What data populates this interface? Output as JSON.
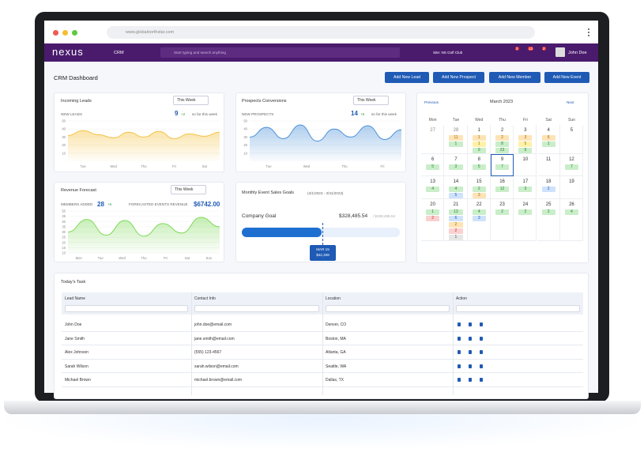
{
  "browser": {
    "url": "www.globalnorthstar.com"
  },
  "nav": {
    "logo": "nexus",
    "module": "CRM",
    "search_placeholder": "Start typing and search anything",
    "site": "Site: NS Golf Club",
    "badges": [
      "2",
      "12",
      "2"
    ],
    "user": "John Doe"
  },
  "header": {
    "title": "CRM Dashboard",
    "buttons": [
      "Add New Lead",
      "Add New Prospect",
      "Add New Member",
      "Add New Event"
    ]
  },
  "incoming_leads": {
    "title": "Incoming Leads",
    "period": "This Week",
    "metric_label": "NEW LEADS",
    "count": "9",
    "delta": "+2",
    "note": "so far this week",
    "x_labels": [
      "Tue",
      "Wed",
      "Thu",
      "Fri",
      "Sat"
    ],
    "values": [
      32,
      38,
      33,
      29,
      36,
      30,
      37,
      28,
      34,
      31,
      36
    ],
    "ylim": [
      0,
      50
    ],
    "yticks": [
      10,
      20,
      30,
      40,
      50
    ],
    "color": "#f6c343"
  },
  "prospect_conversions": {
    "title": "Prospects Conversions",
    "period": "This Week",
    "metric_label": "NEW PROSPECTS",
    "count": "14",
    "delta": "+6",
    "note": "so far this week",
    "x_labels": [
      "Tue",
      "Wed",
      "Thu",
      "Fri"
    ],
    "values": [
      30,
      42,
      28,
      45,
      25,
      40,
      30,
      44,
      27,
      39
    ],
    "ylim": [
      0,
      50
    ],
    "yticks": [
      10,
      20,
      30,
      40,
      50
    ],
    "color": "#4a90d9"
  },
  "revenue_forecast": {
    "title": "Revenue Forecast",
    "period": "This Week",
    "members_label": "MEMBERS ADDED",
    "members": "28",
    "delta": "+6",
    "revenue_label": "FORECASTED EVENTS REVENUE",
    "revenue": "$6742.00",
    "x_labels": [
      "Mon",
      "Tue",
      "Wed",
      "Thu",
      "Fri",
      "Sat",
      "Sun"
    ],
    "values": [
      30,
      42,
      27,
      41,
      26,
      38,
      29,
      44,
      35
    ],
    "ylim": [
      10,
      50
    ],
    "yticks": [
      10,
      15,
      20,
      25,
      30,
      35,
      40,
      45,
      50
    ],
    "color": "#7ed957"
  },
  "sales_goals": {
    "title": "Monthly Event Sales Goals",
    "range": "(3/1/2023 - 3/31/2023)",
    "goal_label": "Company Goal",
    "achieved": "$328,485.54",
    "target": "/ $328,485.54",
    "marker_date": "MAR 15",
    "marker_value": "$42,338"
  },
  "calendar": {
    "previous": "Previous",
    "month": "March 2023",
    "next": "Next",
    "weekdays": [
      "Mon",
      "Tue",
      "Wed",
      "Thu",
      "Fri",
      "Sat",
      "Sun"
    ],
    "weeks": [
      [
        {
          "day": "27",
          "tags": []
        },
        {
          "day": "28",
          "tags": [
            [
              "11",
              "o"
            ],
            [
              "1",
              "g"
            ]
          ]
        },
        {
          "day": "1",
          "tags": [
            [
              "1",
              "o"
            ],
            [
              "1",
              "y"
            ],
            [
              "9",
              "g"
            ]
          ]
        },
        {
          "day": "2",
          "tags": [
            [
              "2",
              "o"
            ],
            [
              "8",
              "g"
            ],
            [
              "23",
              "g"
            ]
          ]
        },
        {
          "day": "3",
          "tags": [
            [
              "3",
              "o"
            ],
            [
              "5",
              "y"
            ],
            [
              "9",
              "g"
            ]
          ]
        },
        {
          "day": "4",
          "tags": [
            [
              "6",
              "o"
            ],
            [
              "1",
              "g"
            ]
          ]
        },
        {
          "day": "5",
          "tags": []
        }
      ],
      [
        {
          "day": "6",
          "tags": [
            [
              "5",
              "g"
            ]
          ]
        },
        {
          "day": "7",
          "tags": [
            [
              "3",
              "g"
            ]
          ]
        },
        {
          "day": "8",
          "tags": [
            [
              "5",
              "g"
            ]
          ]
        },
        {
          "day": "9",
          "tags": [
            [
              "7",
              "g"
            ]
          ]
        },
        {
          "day": "10",
          "tags": []
        },
        {
          "day": "11",
          "tags": []
        },
        {
          "day": "12",
          "tags": [
            [
              "7",
              "g"
            ]
          ]
        }
      ],
      [
        {
          "day": "13",
          "tags": [
            [
              "4",
              "g"
            ]
          ]
        },
        {
          "day": "14",
          "tags": [
            [
              "4",
              "g"
            ],
            [
              "5",
              "b"
            ]
          ]
        },
        {
          "day": "15",
          "tags": [
            [
              "2",
              "g"
            ],
            [
              "3",
              "o"
            ]
          ]
        },
        {
          "day": "16",
          "tags": [
            [
              "12",
              "g"
            ]
          ]
        },
        {
          "day": "17",
          "tags": [
            [
              "3",
              "g"
            ]
          ]
        },
        {
          "day": "18",
          "tags": [
            [
              "2",
              "b"
            ]
          ]
        },
        {
          "day": "19",
          "tags": []
        }
      ],
      [
        {
          "day": "20",
          "tags": [
            [
              "1",
              "g"
            ],
            [
              "2",
              "r"
            ]
          ]
        },
        {
          "day": "21",
          "tags": [
            [
              "13",
              "g"
            ],
            [
              "6",
              "b"
            ],
            [
              "2",
              "o"
            ],
            [
              "2",
              "r"
            ],
            [
              "1",
              "x"
            ]
          ]
        },
        {
          "day": "22",
          "tags": [
            [
              "4",
              "g"
            ],
            [
              "3",
              "b"
            ]
          ]
        },
        {
          "day": "23",
          "tags": [
            [
              "2",
              "g"
            ]
          ]
        },
        {
          "day": "24",
          "tags": [
            [
              "2",
              "g"
            ]
          ]
        },
        {
          "day": "25",
          "tags": [
            [
              "2",
              "g"
            ]
          ]
        },
        {
          "day": "26",
          "tags": [
            [
              "4",
              "g"
            ]
          ]
        }
      ]
    ]
  },
  "tasks": {
    "title": "Today's Task",
    "columns": [
      "Lead Name",
      "Contact Info",
      "Location",
      "Action"
    ],
    "rows": [
      [
        "John Doe",
        "john.doe@email.com",
        "Denver, CO"
      ],
      [
        "Jane Smith",
        "jane.smith@email.com",
        "Boston, MA"
      ],
      [
        "Alex Johnson",
        "(555) 123-4567",
        "Atlanta, GA"
      ],
      [
        "Sarah Wilson",
        "sarah.wilson@email.com",
        "Seattle, WA"
      ],
      [
        "Michael Brown",
        "michael.brown@email.com",
        "Dallas, TX"
      ]
    ]
  }
}
